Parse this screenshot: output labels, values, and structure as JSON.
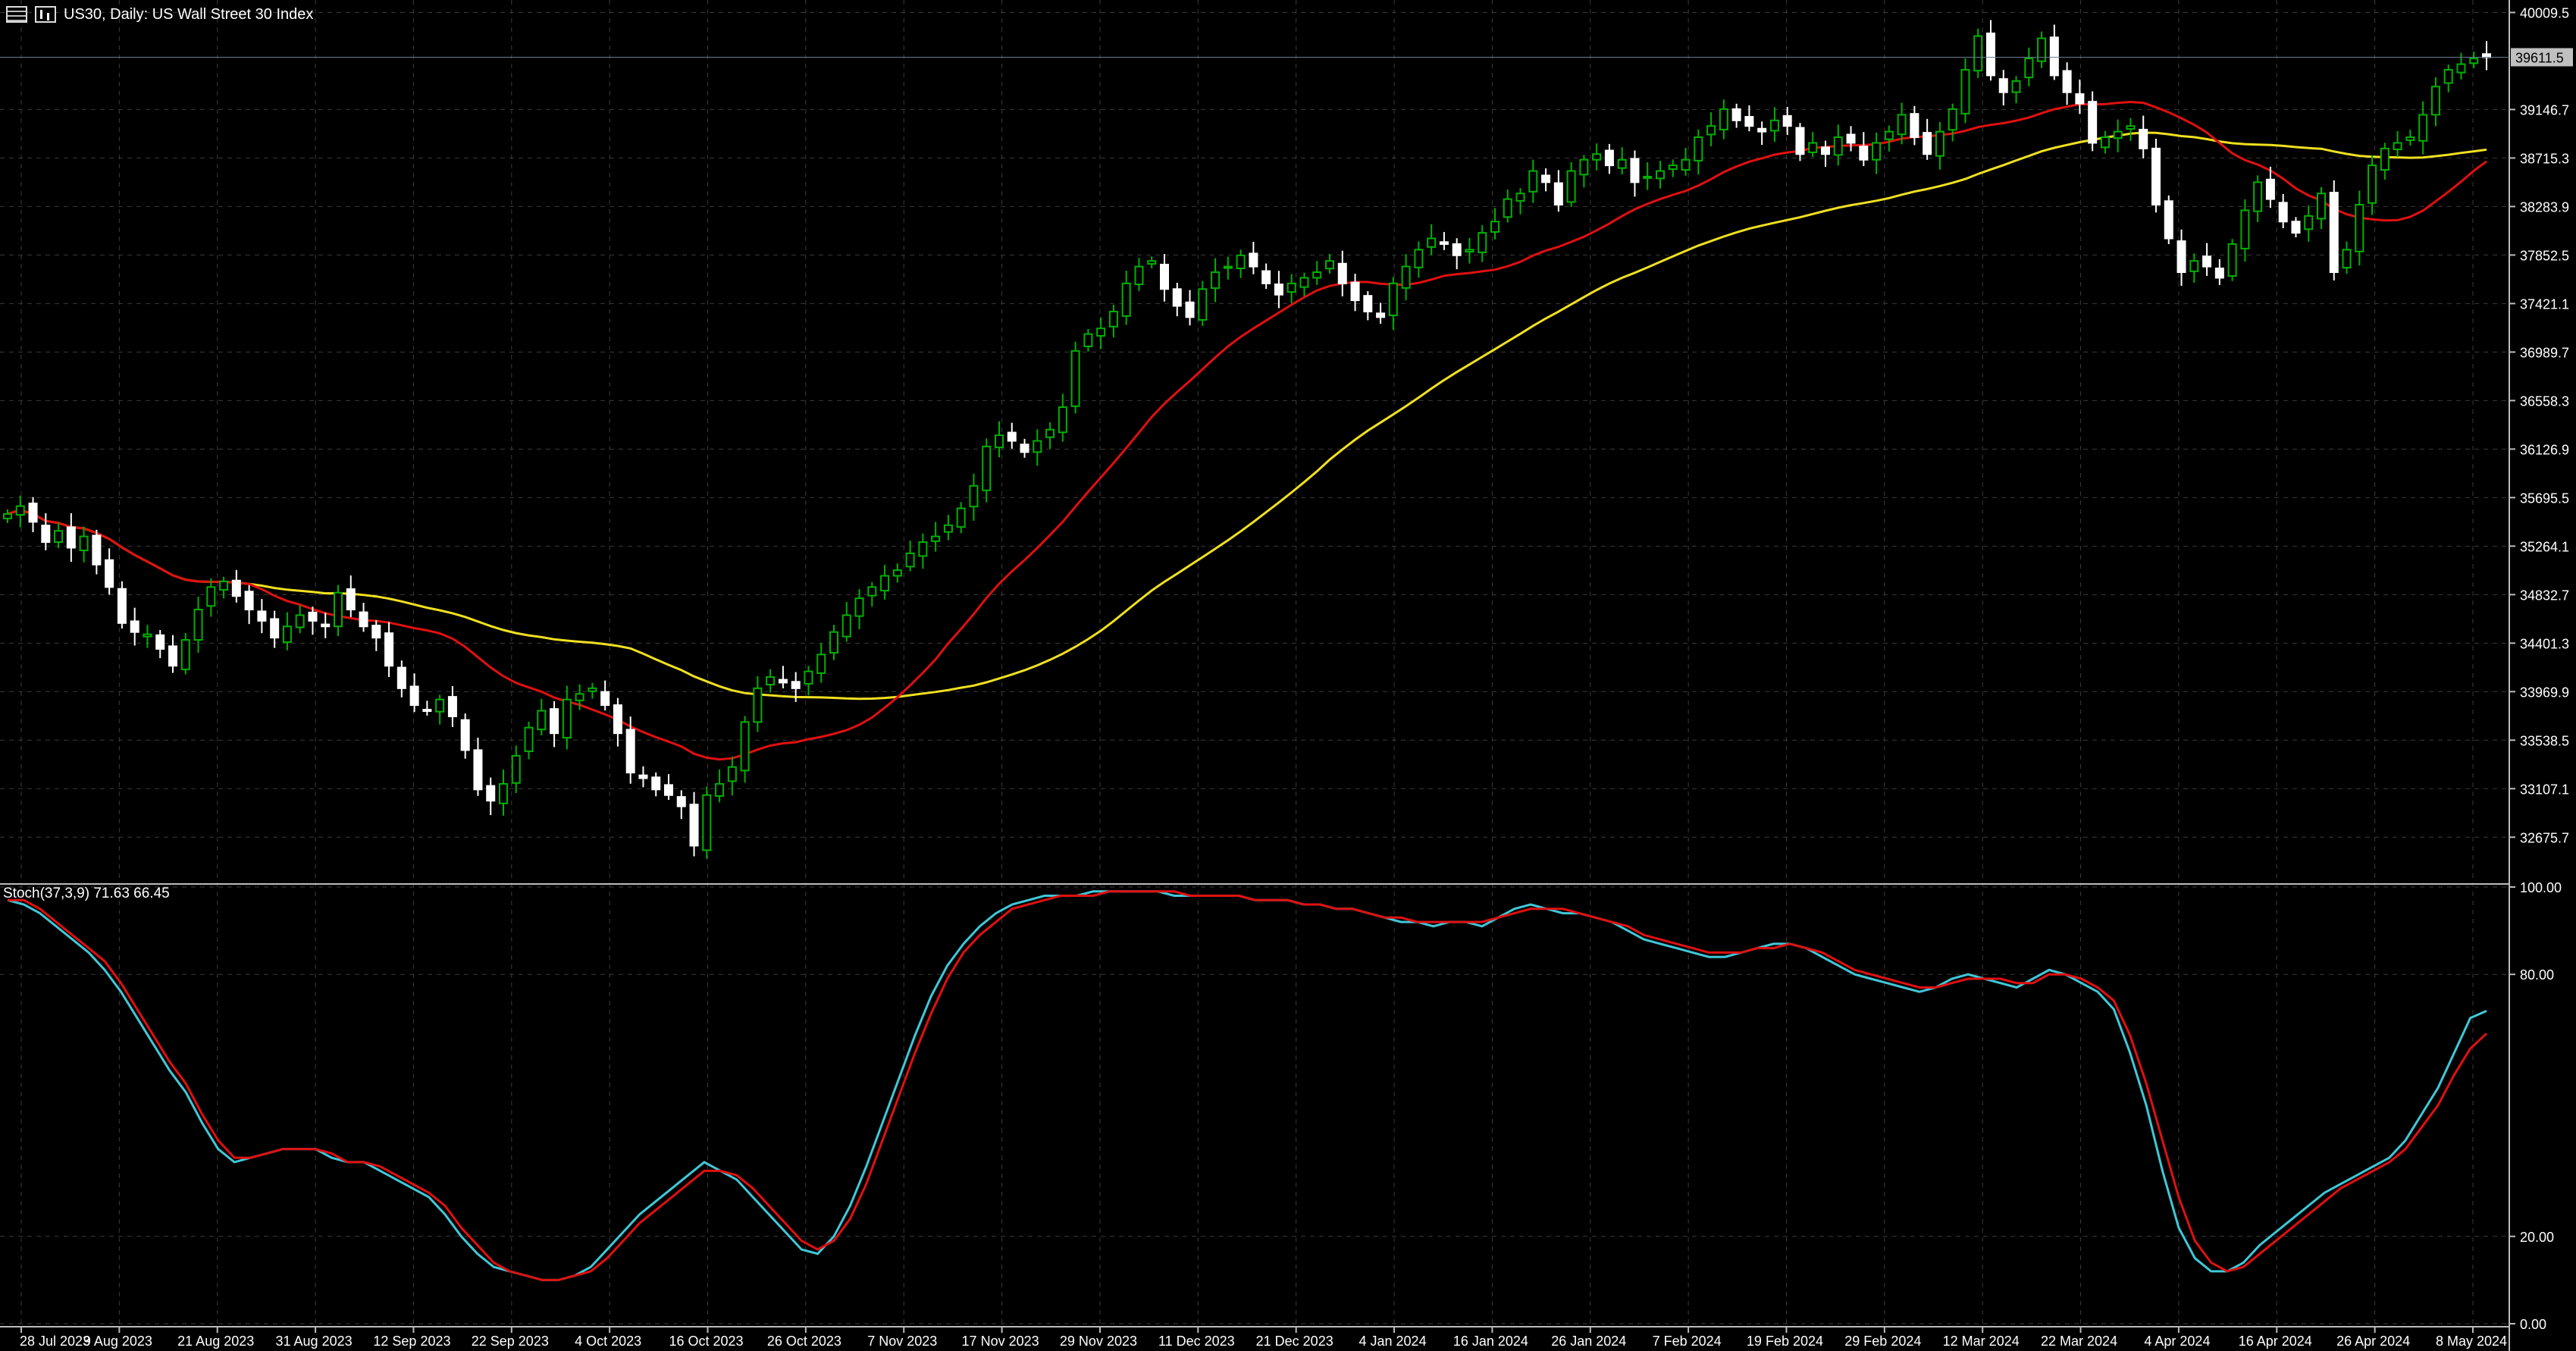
{
  "window": {
    "symbol_title": "US30, Daily:  US Wall Street 30 Index",
    "table_icon": "table-icon",
    "chart_icon": "candlestick-chart-icon"
  },
  "colors": {
    "background": "#000000",
    "grid": "#3a3a3a",
    "bull_candle": "#00b000",
    "bear_candle": "#ffffff",
    "ma_fast": "#e01010",
    "ma_slow": "#f0e020",
    "stoch_main": "#40c8d8",
    "stoch_signal": "#e01010",
    "price_marker": "#c0c0c0"
  },
  "chart_data": [
    {
      "type": "candlestick",
      "title": "US30, Daily:  US Wall Street 30 Index",
      "ylim": [
        32300,
        40080
      ],
      "y_ticks": [
        "40009.5",
        "39146.7",
        "38715.3",
        "38283.9",
        "37852.5",
        "37421.1",
        "36989.7",
        "36558.3",
        "36126.9",
        "35695.5",
        "35264.1",
        "34832.7",
        "34401.3",
        "33969.9",
        "33538.5",
        "33107.1",
        "32675.7"
      ],
      "x_ticks": [
        "28 Jul 2023",
        "9 Aug 2023",
        "21 Aug 2023",
        "31 Aug 2023",
        "12 Sep 2023",
        "22 Sep 2023",
        "4 Oct 2023",
        "16 Oct 2023",
        "26 Oct 2023",
        "7 Nov 2023",
        "17 Nov 2023",
        "29 Nov 2023",
        "11 Dec 2023",
        "21 Dec 2023",
        "4 Jan 2024",
        "16 Jan 2024",
        "26 Jan 2024",
        "7 Feb 2024",
        "19 Feb 2024",
        "29 Feb 2024",
        "12 Mar 2024",
        "22 Mar 2024",
        "4 Apr 2024",
        "16 Apr 2024",
        "26 Apr 2024",
        "8 May 2024"
      ],
      "current_price": "39611.5",
      "grid": true,
      "closes": [
        35550,
        35620,
        35480,
        35300,
        35400,
        35250,
        35350,
        35100,
        34900,
        34580,
        34500,
        34480,
        34350,
        34200,
        34430,
        34700,
        34900,
        34950,
        34820,
        34700,
        34600,
        34450,
        34550,
        34650,
        34600,
        34550,
        34850,
        34700,
        34550,
        34450,
        34200,
        34000,
        33850,
        33800,
        33900,
        33750,
        33450,
        33100,
        33000,
        33150,
        33400,
        33650,
        33800,
        33600,
        33900,
        33950,
        34000,
        33850,
        33600,
        33250,
        33200,
        33100,
        33050,
        32950,
        32600,
        33050,
        33150,
        33300,
        33700,
        34000,
        34100,
        34050,
        34000,
        34150,
        34300,
        34500,
        34650,
        34800,
        34900,
        35000,
        35050,
        35200,
        35300,
        35350,
        35450,
        35600,
        35800,
        36150,
        36250,
        36200,
        36100,
        36200,
        36300,
        36500,
        37000,
        37150,
        37200,
        37350,
        37600,
        37750,
        37800,
        37550,
        37400,
        37300,
        37550,
        37700,
        37750,
        37850,
        37750,
        37600,
        37500,
        37600,
        37650,
        37700,
        37800,
        37600,
        37450,
        37350,
        37300,
        37600,
        37750,
        37900,
        38000,
        37950,
        37850,
        37900,
        38050,
        38150,
        38350,
        38400,
        38600,
        38500,
        38300,
        38600,
        38700,
        38750,
        38650,
        38700,
        38500,
        38550,
        38600,
        38650,
        38700,
        38900,
        39000,
        39150,
        39050,
        39000,
        38950,
        39050,
        39000,
        38750,
        38850,
        38750,
        38900,
        38850,
        38700,
        38850,
        38950,
        39100,
        38900,
        38750,
        38950,
        39150,
        39500,
        39800,
        39450,
        39300,
        39400,
        39600,
        39780,
        39450,
        39300,
        39200,
        38850,
        38900,
        38950,
        39000,
        38800,
        38300,
        38000,
        37700,
        37800,
        37750,
        37650,
        37950,
        38250,
        38500,
        38350,
        38150,
        38050,
        38200,
        38400,
        37700,
        37900,
        38300,
        38650,
        38800,
        38850,
        38900,
        39100,
        39350,
        39500,
        39550,
        39600,
        39611.5
      ],
      "ma_fast_period_label": "",
      "ma_slow_period_label": ""
    },
    {
      "type": "line",
      "title": "Stoch(37,3,9) 71.63 66.45",
      "ylim": [
        0,
        100
      ],
      "y_ticks": [
        "100.00",
        "80.00",
        "20.00",
        "0.00"
      ],
      "series": [
        {
          "name": "",
          "values": [
            97,
            96,
            94,
            91,
            88,
            85,
            81,
            76,
            70,
            64,
            58,
            53,
            46,
            40,
            37,
            38,
            39,
            40,
            40,
            40,
            38,
            37,
            37,
            35,
            33,
            31,
            29,
            25,
            20,
            16,
            13,
            12,
            11,
            10,
            10,
            11,
            13,
            17,
            21,
            25,
            28,
            31,
            34,
            37,
            35,
            33,
            29,
            25,
            21,
            17,
            16,
            20,
            27,
            36,
            46,
            56,
            66,
            75,
            82,
            87,
            91,
            94,
            96,
            97,
            98,
            98,
            98,
            99,
            99,
            99,
            99,
            99,
            98,
            98,
            98,
            98,
            98,
            97,
            97,
            97,
            96,
            96,
            95,
            95,
            94,
            93,
            92,
            92,
            91,
            92,
            92,
            91,
            93,
            95,
            96,
            95,
            94,
            94,
            93,
            92,
            90,
            88,
            87,
            86,
            85,
            84,
            84,
            85,
            86,
            87,
            87,
            86,
            84,
            82,
            80,
            79,
            78,
            77,
            76,
            77,
            79,
            80,
            79,
            78,
            77,
            79,
            81,
            80,
            78,
            76,
            72,
            62,
            50,
            35,
            22,
            15,
            12,
            12,
            14,
            18,
            21,
            24,
            27,
            30,
            32,
            34,
            36,
            38,
            42,
            48,
            54,
            62,
            70,
            71.63
          ]
        },
        {
          "name": "",
          "values": [
            97,
            97,
            95,
            92,
            89,
            86,
            83,
            78,
            72,
            66,
            60,
            55,
            48,
            42,
            38,
            38,
            39,
            40,
            40,
            40,
            39,
            37,
            37,
            36,
            34,
            32,
            30,
            27,
            22,
            18,
            14,
            12,
            11,
            10,
            10,
            11,
            12,
            15,
            19,
            23,
            26,
            29,
            32,
            35,
            35,
            34,
            31,
            27,
            23,
            19,
            17,
            19,
            24,
            32,
            42,
            52,
            62,
            71,
            79,
            85,
            89,
            92,
            95,
            96,
            97,
            98,
            98,
            98,
            99,
            99,
            99,
            99,
            99,
            98,
            98,
            98,
            98,
            97,
            97,
            97,
            96,
            96,
            95,
            95,
            94,
            93,
            93,
            92,
            92,
            92,
            92,
            92,
            93,
            94,
            95,
            95,
            95,
            94,
            93,
            92,
            91,
            89,
            88,
            87,
            86,
            85,
            85,
            85,
            86,
            86,
            87,
            86,
            85,
            83,
            81,
            80,
            79,
            78,
            77,
            77,
            78,
            79,
            79,
            79,
            78,
            78,
            80,
            80,
            79,
            77,
            74,
            66,
            55,
            42,
            29,
            19,
            14,
            12,
            13,
            16,
            19,
            22,
            25,
            28,
            31,
            33,
            35,
            37,
            40,
            45,
            50,
            57,
            63,
            66.45
          ]
        }
      ]
    }
  ]
}
